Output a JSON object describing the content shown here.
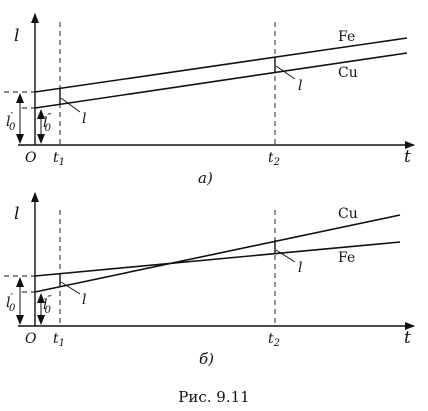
{
  "figure": {
    "caption": "Рис. 9.11",
    "panel_a_label": "а)",
    "panel_b_label": "б)"
  },
  "axes": {
    "y_label": "l",
    "x_label": "t",
    "origin": "O",
    "t1": "t",
    "t1_sub": "1",
    "t2": "t",
    "t2_sub": "2",
    "l0_prime": "l",
    "l0_prime_sup": "′",
    "l0_prime_sub": "0",
    "l0_double": "l",
    "l0_double_sup": "″",
    "l0_double_sub": "0",
    "diff_label": "l"
  },
  "series_names": {
    "fe": "Fe",
    "cu": "Cu"
  }
}
